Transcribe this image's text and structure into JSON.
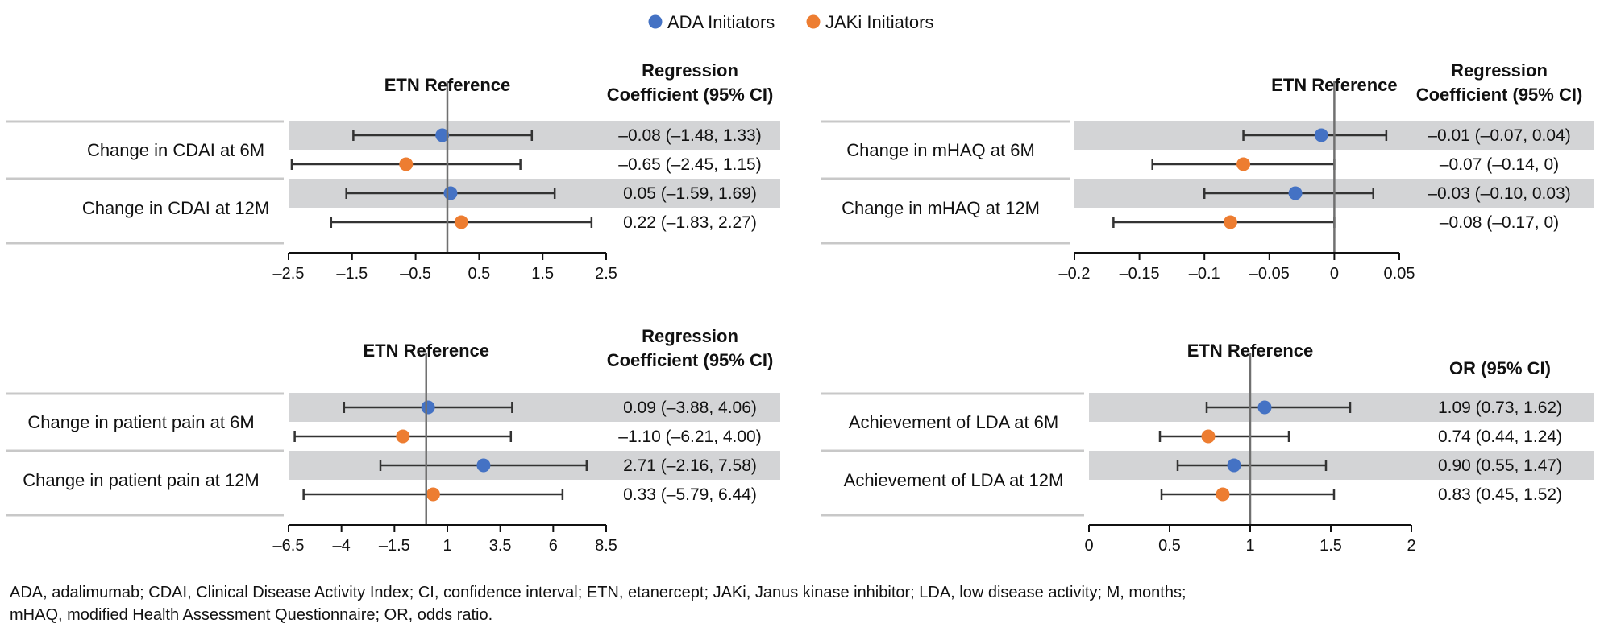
{
  "legend": [
    {
      "name": "ADA Initiators",
      "color": "#4472C4"
    },
    {
      "name": "JAKi Initiators",
      "color": "#ED7D31"
    }
  ],
  "colors": {
    "band": "#D3D4D6",
    "line": "#333333",
    "reference": "#707070",
    "separator": "#C8C8C8"
  },
  "chart_data": [
    {
      "type": "forest",
      "reference_label": "ETN Reference",
      "value_header": [
        "Regression",
        "Coefficient (95% CI)"
      ],
      "reference_value": 0,
      "xlim": [
        -2.5,
        2.5
      ],
      "ticks": [
        -2.5,
        -1.5,
        -0.5,
        0.5,
        1.5,
        2.5
      ],
      "tick_labels": [
        "–2.5",
        "–1.5",
        "–0.5",
        "0.5",
        "1.5",
        "2.5"
      ],
      "groups": [
        {
          "label": "Change in CDAI at 6M",
          "rows": [
            {
              "series": "ADA Initiators",
              "estimate": -0.08,
              "lower": -1.48,
              "upper": 1.33,
              "text": "–0.08 (–1.48, 1.33)"
            },
            {
              "series": "JAKi Initiators",
              "estimate": -0.65,
              "lower": -2.45,
              "upper": 1.15,
              "text": "–0.65 (–2.45, 1.15)"
            }
          ]
        },
        {
          "label": "Change in CDAI at 12M",
          "rows": [
            {
              "series": "ADA Initiators",
              "estimate": 0.05,
              "lower": -1.59,
              "upper": 1.69,
              "text": "0.05 (–1.59, 1.69)"
            },
            {
              "series": "JAKi Initiators",
              "estimate": 0.22,
              "lower": -1.83,
              "upper": 2.27,
              "text": "0.22 (–1.83, 2.27)"
            }
          ]
        }
      ]
    },
    {
      "type": "forest",
      "reference_label": "ETN Reference",
      "value_header": [
        "Regression",
        "Coefficient (95% CI)"
      ],
      "reference_value": 0,
      "xlim": [
        -0.2,
        0.05
      ],
      "ticks": [
        -0.2,
        -0.15,
        -0.1,
        -0.05,
        0,
        0.05
      ],
      "tick_labels": [
        "–0.2",
        "–0.15",
        "–0.1",
        "–0.05",
        "0",
        "0.05"
      ],
      "groups": [
        {
          "label": "Change in mHAQ at 6M",
          "rows": [
            {
              "series": "ADA Initiators",
              "estimate": -0.01,
              "lower": -0.07,
              "upper": 0.04,
              "text": "–0.01 (–0.07, 0.04)"
            },
            {
              "series": "JAKi Initiators",
              "estimate": -0.07,
              "lower": -0.14,
              "upper": 0,
              "text": "–0.07 (–0.14, 0)"
            }
          ]
        },
        {
          "label": "Change in mHAQ at 12M",
          "rows": [
            {
              "series": "ADA Initiators",
              "estimate": -0.03,
              "lower": -0.1,
              "upper": 0.03,
              "text": "–0.03 (–0.10, 0.03)"
            },
            {
              "series": "JAKi Initiators",
              "estimate": -0.08,
              "lower": -0.17,
              "upper": 0,
              "text": "–0.08 (–0.17, 0)"
            }
          ]
        }
      ]
    },
    {
      "type": "forest",
      "reference_label": "ETN Reference",
      "value_header": [
        "Regression",
        "Coefficient (95% CI)"
      ],
      "reference_value": 0,
      "xlim": [
        -6.5,
        8.5
      ],
      "ticks": [
        -6.5,
        -4,
        -1.5,
        1,
        3.5,
        6,
        8.5
      ],
      "tick_labels": [
        "–6.5",
        "–4",
        "–1.5",
        "1",
        "3.5",
        "6",
        "8.5"
      ],
      "groups": [
        {
          "label": "Change in patient pain at 6M",
          "rows": [
            {
              "series": "ADA Initiators",
              "estimate": 0.09,
              "lower": -3.88,
              "upper": 4.06,
              "text": "0.09 (–3.88, 4.06)"
            },
            {
              "series": "JAKi Initiators",
              "estimate": -1.1,
              "lower": -6.21,
              "upper": 4.0,
              "text": "–1.10 (–6.21, 4.00)"
            }
          ]
        },
        {
          "label": "Change in patient pain at 12M",
          "rows": [
            {
              "series": "ADA Initiators",
              "estimate": 2.71,
              "lower": -2.16,
              "upper": 7.58,
              "text": "2.71 (–2.16, 7.58)"
            },
            {
              "series": "JAKi Initiators",
              "estimate": 0.33,
              "lower": -5.79,
              "upper": 6.44,
              "text": "0.33 (–5.79, 6.44)"
            }
          ]
        }
      ]
    },
    {
      "type": "forest",
      "reference_label": "ETN Reference",
      "value_header": [
        "OR (95% CI)"
      ],
      "reference_value": 1,
      "xlim": [
        0,
        2
      ],
      "ticks": [
        0,
        0.5,
        1,
        1.5,
        2
      ],
      "tick_labels": [
        "0",
        "0.5",
        "1",
        "1.5",
        "2"
      ],
      "groups": [
        {
          "label": "Achievement of LDA at 6M",
          "rows": [
            {
              "series": "ADA Initiators",
              "estimate": 1.09,
              "lower": 0.73,
              "upper": 1.62,
              "text": "1.09 (0.73, 1.62)"
            },
            {
              "series": "JAKi Initiators",
              "estimate": 0.74,
              "lower": 0.44,
              "upper": 1.24,
              "text": "0.74 (0.44, 1.24)"
            }
          ]
        },
        {
          "label": "Achievement of LDA at 12M",
          "rows": [
            {
              "series": "ADA Initiators",
              "estimate": 0.9,
              "lower": 0.55,
              "upper": 1.47,
              "text": "0.90 (0.55, 1.47)"
            },
            {
              "series": "JAKi Initiators",
              "estimate": 0.83,
              "lower": 0.45,
              "upper": 1.52,
              "text": "0.83 (0.45, 1.52)"
            }
          ]
        }
      ]
    }
  ],
  "footnote": [
    "ADA, adalimumab; CDAI, Clinical Disease Activity Index; CI, confidence interval; ETN, etanercept; JAKi, Janus kinase inhibitor; LDA, low disease activity; M, months;",
    "mHAQ, modified Health Assessment Questionnaire; OR, odds ratio."
  ]
}
